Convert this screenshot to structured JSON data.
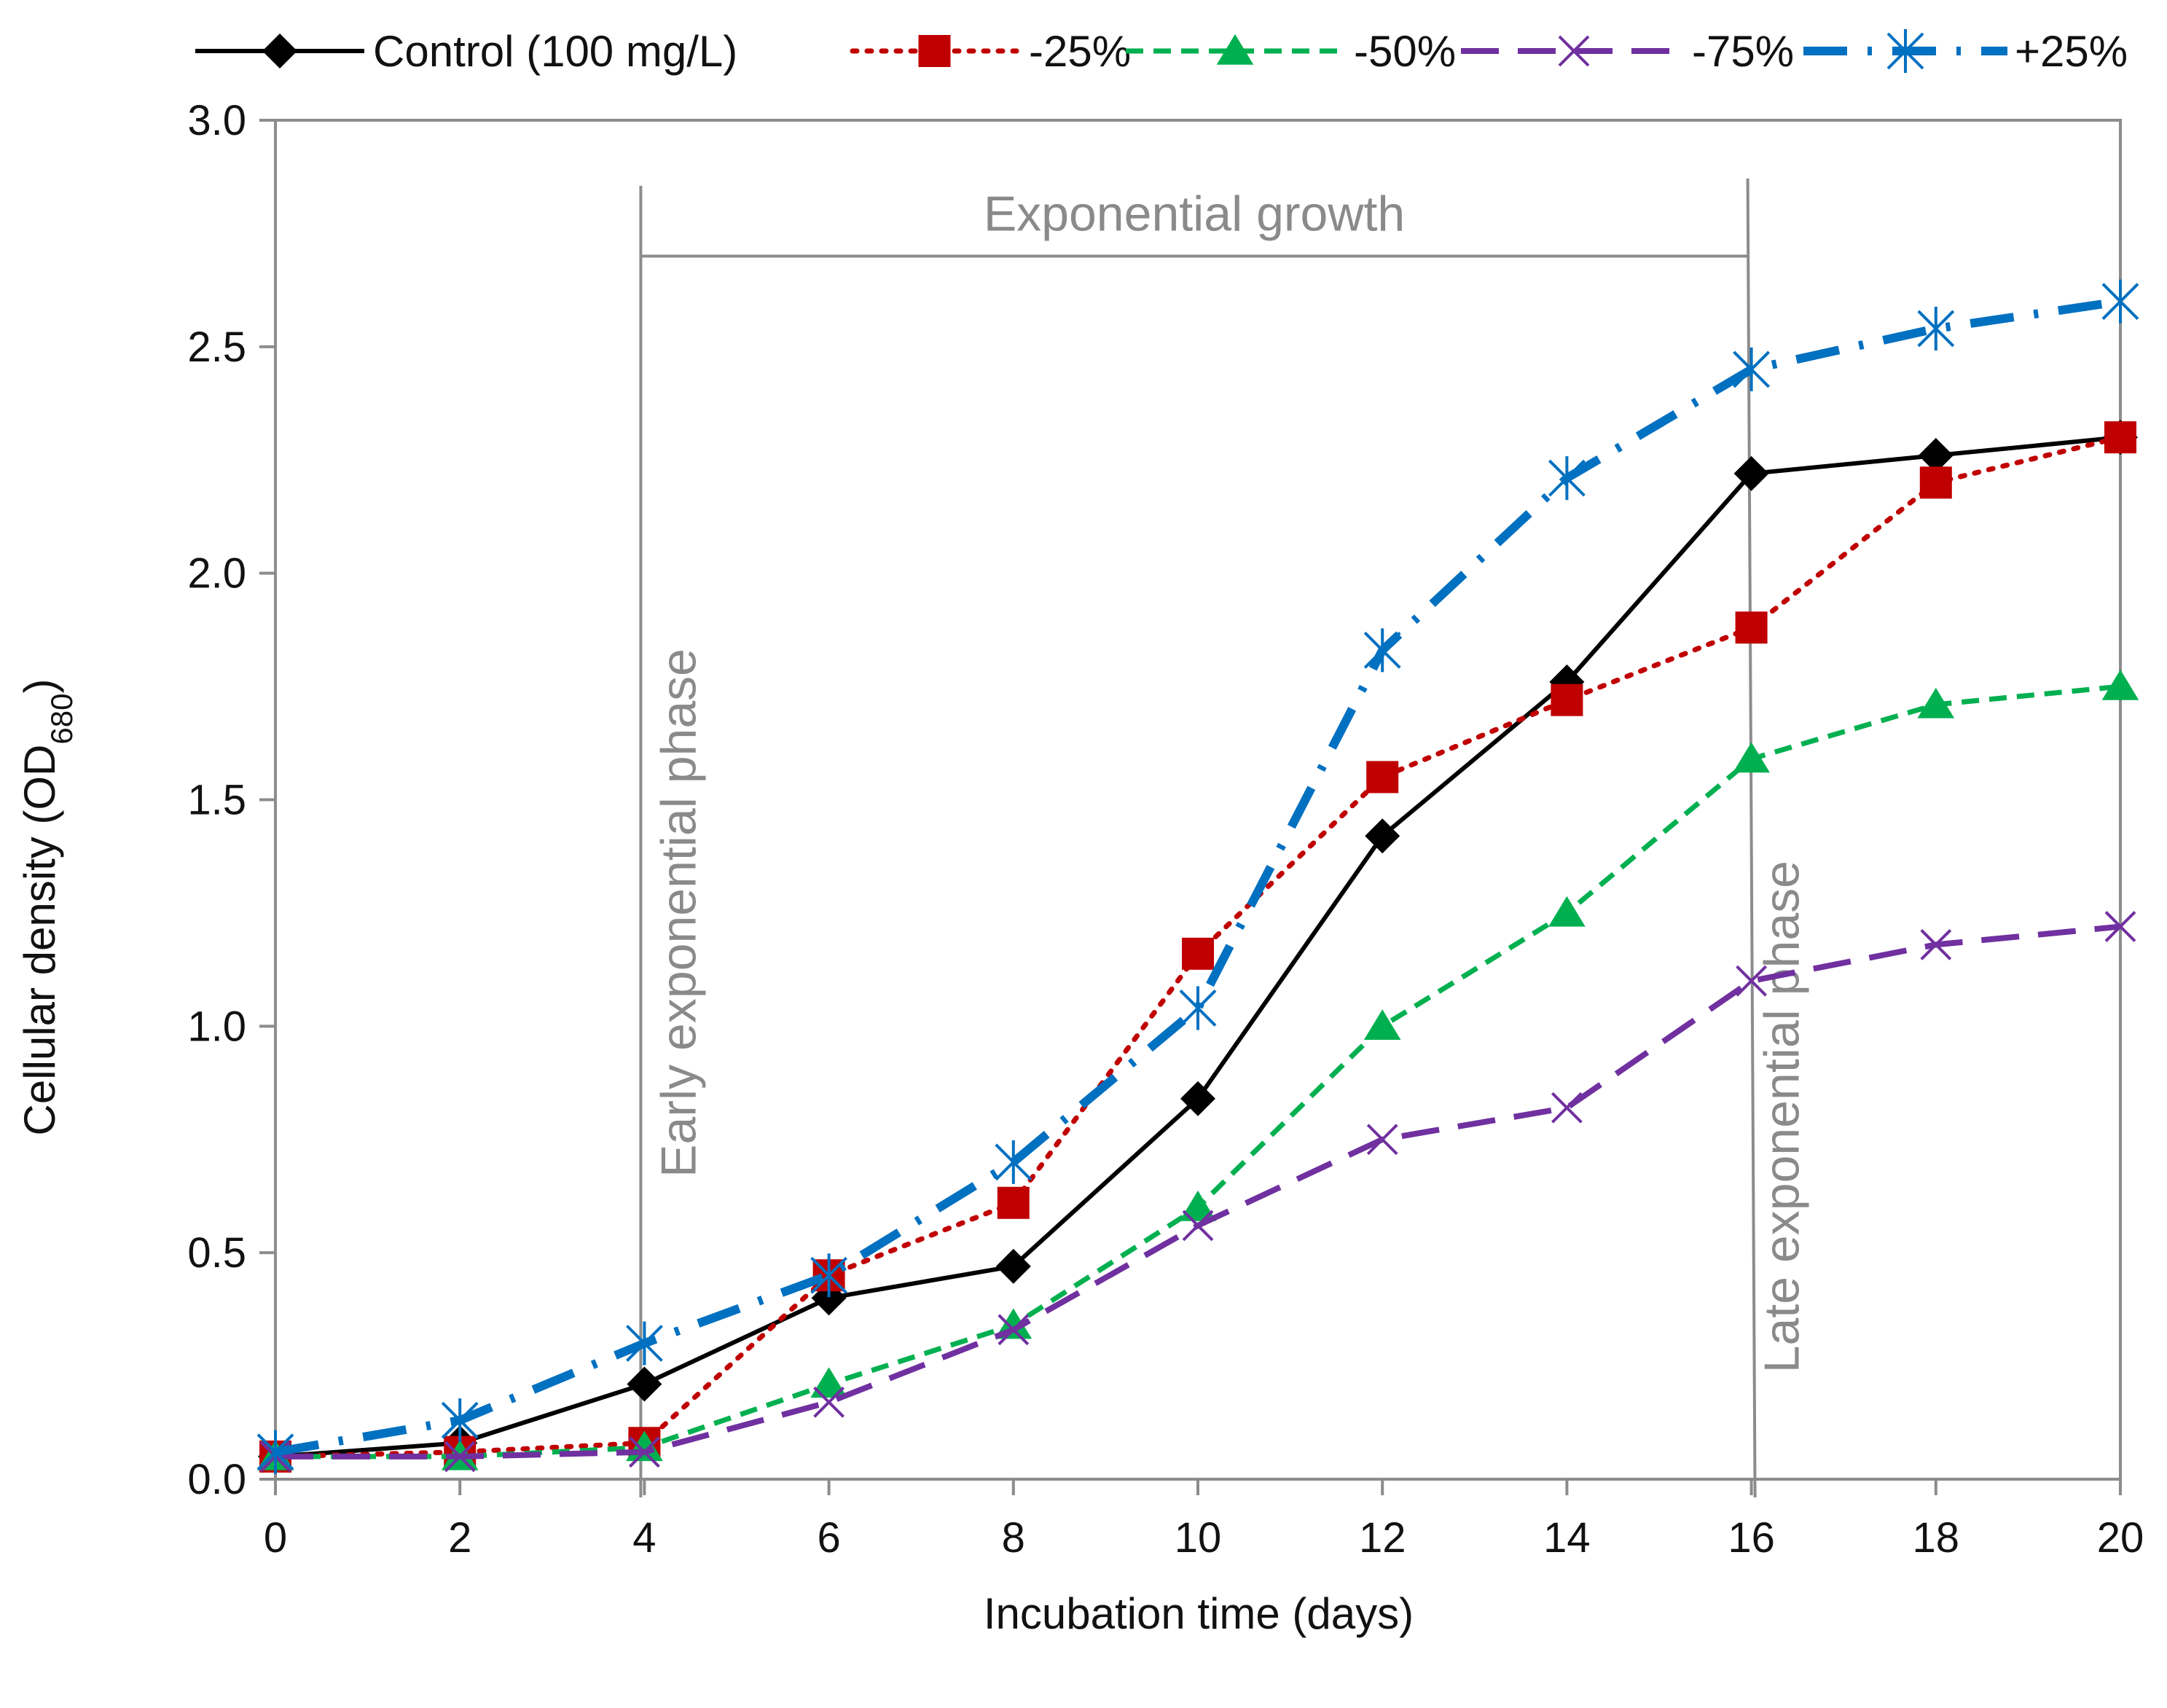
{
  "chart_data": {
    "type": "line",
    "title": "",
    "xlabel": "Incubation time (days)",
    "ylabel": "Cellular density (OD",
    "ylabel_sub": "680",
    "ylabel_close": ")",
    "xlim": [
      0,
      20
    ],
    "ylim": [
      0,
      3
    ],
    "xticks": [
      0,
      2,
      4,
      6,
      8,
      10,
      12,
      14,
      16,
      18,
      20
    ],
    "yticks": [
      "0.0",
      "0.5",
      "1.0",
      "1.5",
      "2.0",
      "2.5",
      "3.0"
    ],
    "grid": false,
    "legend_position": "top",
    "x": [
      0,
      2,
      4,
      6,
      8,
      10,
      12,
      14,
      16,
      18,
      20
    ],
    "series": [
      {
        "name": "Control (100 mg/L)",
        "color": "#000000",
        "marker": "diamond",
        "dash": "solid",
        "values": [
          0.05,
          0.08,
          0.21,
          0.4,
          0.47,
          0.84,
          1.42,
          1.76,
          2.22,
          2.26,
          2.3
        ]
      },
      {
        "name": "-25%",
        "color": "#c00000",
        "marker": "square",
        "dash": "dotted",
        "values": [
          0.05,
          0.06,
          0.08,
          0.45,
          0.61,
          1.16,
          1.55,
          1.72,
          1.88,
          2.2,
          2.3
        ]
      },
      {
        "name": "-50%",
        "color": "#00b050",
        "marker": "triangle",
        "dash": "dashed",
        "values": [
          0.05,
          0.05,
          0.07,
          0.21,
          0.34,
          0.6,
          1.0,
          1.25,
          1.59,
          1.71,
          1.75
        ]
      },
      {
        "name": "-75%",
        "color": "#7030a0",
        "marker": "x",
        "dash": "longdash",
        "values": [
          0.05,
          0.05,
          0.06,
          0.17,
          0.33,
          0.56,
          0.75,
          0.82,
          1.1,
          1.18,
          1.22
        ]
      },
      {
        "name": "+25%",
        "color": "#0070c0",
        "marker": "star",
        "dash": "dashdot",
        "values": [
          0.06,
          0.13,
          0.3,
          0.45,
          0.7,
          1.04,
          1.83,
          2.21,
          2.45,
          2.54,
          2.6
        ]
      }
    ],
    "annotations": {
      "exponential_growth": "Exponential growth",
      "early_phase": "Early exponential phase",
      "late_phase": "Late exponential phase",
      "early_day": 4,
      "late_day": 16
    }
  }
}
